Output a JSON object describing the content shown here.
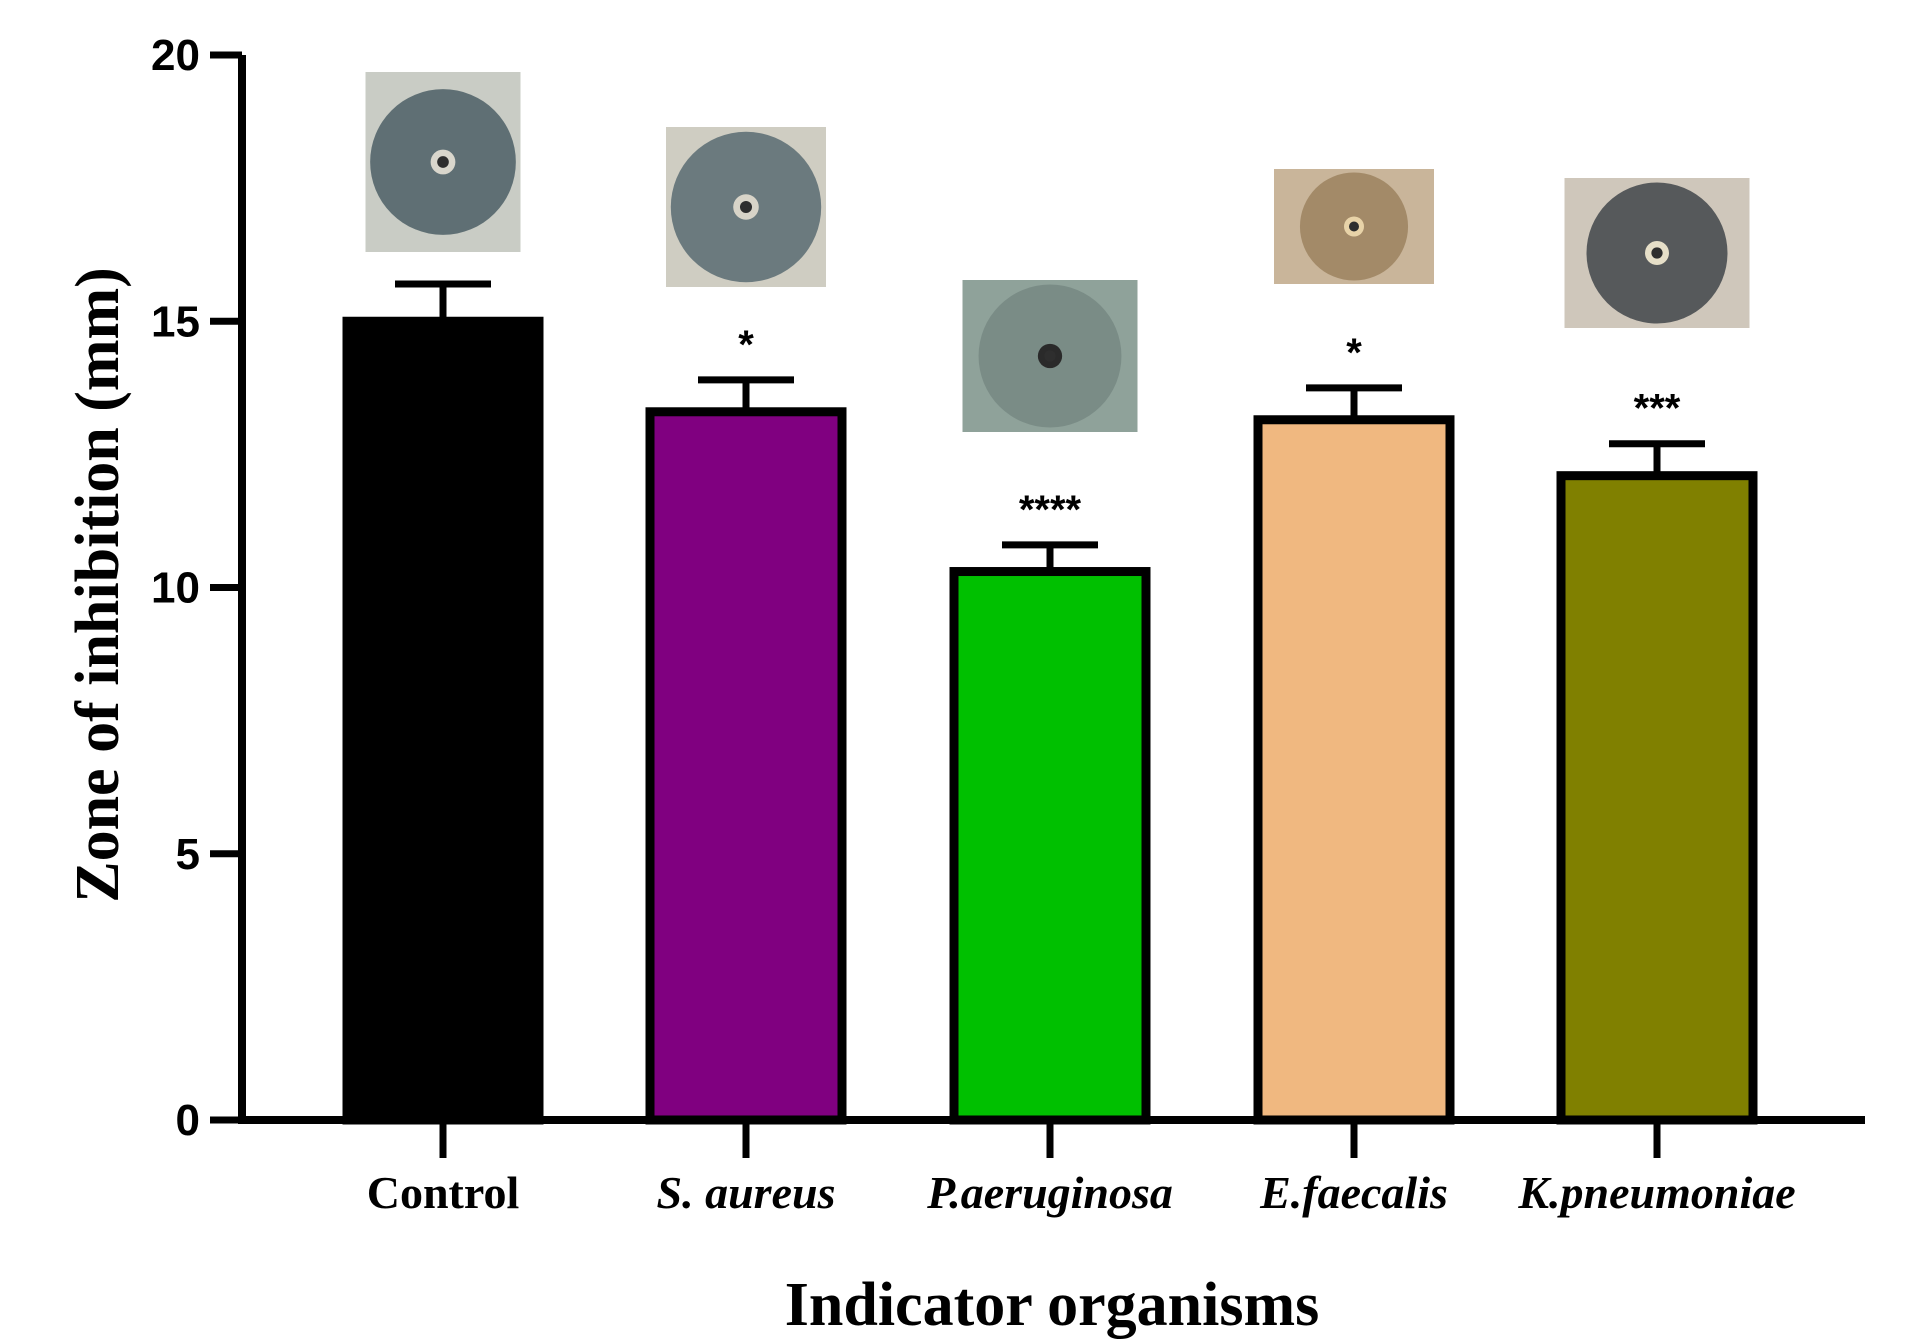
{
  "chart_data": {
    "type": "bar",
    "title": "",
    "xlabel": "Indicator organisms",
    "ylabel": "Zone of inhibition (mm)",
    "ylim": [
      0,
      20
    ],
    "yticks": [
      "0",
      "5",
      "10",
      "15",
      "20"
    ],
    "categories": [
      "Control",
      "S. aureus",
      "P.aeruginosa",
      "E.faecalis",
      "K.pneumoniae"
    ],
    "italic": [
      false,
      true,
      true,
      true,
      true
    ],
    "values": [
      15.0,
      13.3,
      10.3,
      13.15,
      12.1
    ],
    "errors": [
      0.7,
      0.6,
      0.5,
      0.6,
      0.6
    ],
    "significance": [
      "",
      "*",
      "****",
      "*",
      "***"
    ],
    "colors": [
      "#000000",
      "#800080",
      "#00c000",
      "#f0b880",
      "#808000"
    ],
    "insets": [
      {
        "description": "agar plate well with clear zone",
        "background": "#c9ccc5",
        "zone": "#5f6f74",
        "ring": "#d9d6cc"
      },
      {
        "description": "agar plate well with clear zone",
        "background": "#cfcdc2",
        "zone": "#6b7a7e",
        "ring": "#d8d4c8"
      },
      {
        "description": "agar plate well with clear zone",
        "background": "#8fa29a",
        "zone": "#7a8c86",
        "ring": "#2a2a2a"
      },
      {
        "description": "agar plate well with clear zone",
        "background": "#c9b59a",
        "zone": "#a38a68",
        "ring": "#e8d3a8"
      },
      {
        "description": "agar plate well with clear zone",
        "background": "#cfc7bb",
        "zone": "#56595b",
        "ring": "#e6dfc8"
      }
    ]
  }
}
